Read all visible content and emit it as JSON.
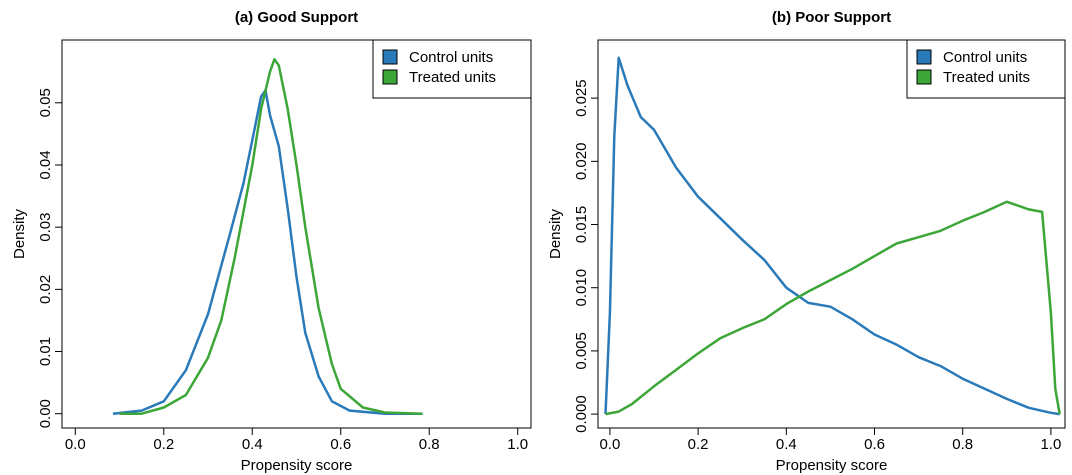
{
  "chart_data": [
    {
      "type": "line",
      "title": "(a) Good Support",
      "x_label": "Propensity score",
      "y_label": "Density",
      "xlim": [
        -0.03,
        1.03
      ],
      "ylim": [
        -0.0023,
        0.0601
      ],
      "xticks": [
        {
          "value": 0,
          "label": "0.0"
        },
        {
          "value": 0.2,
          "label": "0.2"
        },
        {
          "value": 0.4,
          "label": "0.4"
        },
        {
          "value": 0.6,
          "label": "0.6"
        },
        {
          "value": 0.8,
          "label": "0.8"
        },
        {
          "value": 1,
          "label": "1.0"
        }
      ],
      "yticks": [
        {
          "value": 0,
          "label": "0.00"
        },
        {
          "value": 0.01,
          "label": "0.01"
        },
        {
          "value": 0.02,
          "label": "0.02"
        },
        {
          "value": 0.03,
          "label": "0.03"
        },
        {
          "value": 0.04,
          "label": "0.04"
        },
        {
          "value": 0.05,
          "label": "0.05"
        }
      ],
      "legend": "top-right",
      "series": [
        {
          "name": "Control units",
          "color": "#2a7ab9",
          "x": [
            0.085,
            0.15,
            0.2,
            0.25,
            0.3,
            0.35,
            0.38,
            0.4,
            0.42,
            0.43,
            0.44,
            0.46,
            0.48,
            0.5,
            0.52,
            0.55,
            0.58,
            0.62,
            0.7,
            0.785
          ],
          "values": [
            0,
            0.0005,
            0.002,
            0.007,
            0.016,
            0.029,
            0.037,
            0.044,
            0.051,
            0.052,
            0.048,
            0.043,
            0.033,
            0.022,
            0.013,
            0.006,
            0.002,
            0.0005,
            0,
            0
          ]
        },
        {
          "name": "Treated units",
          "color": "#3da638",
          "x": [
            0.1,
            0.15,
            0.2,
            0.25,
            0.3,
            0.33,
            0.36,
            0.4,
            0.42,
            0.44,
            0.45,
            0.46,
            0.48,
            0.5,
            0.52,
            0.55,
            0.58,
            0.6,
            0.65,
            0.7,
            0.785
          ],
          "values": [
            0,
            0,
            0.001,
            0.003,
            0.009,
            0.015,
            0.025,
            0.04,
            0.049,
            0.055,
            0.057,
            0.056,
            0.049,
            0.04,
            0.03,
            0.017,
            0.008,
            0.004,
            0.001,
            0.0002,
            0
          ]
        }
      ]
    },
    {
      "type": "line",
      "title": "(b) Poor Support",
      "x_label": "Propensity score",
      "y_label": "Density",
      "xlim": [
        -0.027,
        1.032
      ],
      "ylim": [
        -0.0011,
        0.0296
      ],
      "xticks": [
        {
          "value": 0,
          "label": "0.0"
        },
        {
          "value": 0.2,
          "label": "0.2"
        },
        {
          "value": 0.4,
          "label": "0.4"
        },
        {
          "value": 0.6,
          "label": "0.6"
        },
        {
          "value": 0.8,
          "label": "0.8"
        },
        {
          "value": 1,
          "label": "1.0"
        }
      ],
      "yticks": [
        {
          "value": 0,
          "label": "0.000"
        },
        {
          "value": 0.005,
          "label": "0.005"
        },
        {
          "value": 0.01,
          "label": "0.010"
        },
        {
          "value": 0.015,
          "label": "0.015"
        },
        {
          "value": 0.02,
          "label": "0.020"
        },
        {
          "value": 0.025,
          "label": "0.025"
        }
      ],
      "legend": "top-right",
      "series": [
        {
          "name": "Control units",
          "color": "#2a7ab9",
          "x": [
            -0.01,
            0,
            0.01,
            0.02,
            0.04,
            0.07,
            0.1,
            0.15,
            0.2,
            0.25,
            0.3,
            0.35,
            0.4,
            0.45,
            0.5,
            0.55,
            0.6,
            0.65,
            0.7,
            0.75,
            0.8,
            0.85,
            0.9,
            0.95,
            1,
            1.02
          ],
          "values": [
            0,
            0.008,
            0.022,
            0.0282,
            0.026,
            0.0235,
            0.0225,
            0.0195,
            0.0172,
            0.0155,
            0.0138,
            0.0122,
            0.01,
            0.0088,
            0.0085,
            0.0075,
            0.0063,
            0.0055,
            0.0045,
            0.0038,
            0.0028,
            0.002,
            0.0012,
            0.0005,
            0.0001,
            0
          ]
        },
        {
          "name": "Treated units",
          "color": "#3da638",
          "x": [
            -0.01,
            0.02,
            0.05,
            0.1,
            0.15,
            0.2,
            0.25,
            0.3,
            0.35,
            0.4,
            0.45,
            0.5,
            0.55,
            0.6,
            0.65,
            0.7,
            0.75,
            0.8,
            0.85,
            0.9,
            0.95,
            0.98,
            1,
            1.01,
            1.02
          ],
          "values": [
            0,
            0.0002,
            0.0008,
            0.0022,
            0.0035,
            0.0048,
            0.006,
            0.0068,
            0.0075,
            0.0087,
            0.0097,
            0.0106,
            0.0115,
            0.0125,
            0.0135,
            0.014,
            0.0145,
            0.0153,
            0.016,
            0.0168,
            0.0162,
            0.016,
            0.008,
            0.002,
            0
          ]
        }
      ]
    }
  ]
}
